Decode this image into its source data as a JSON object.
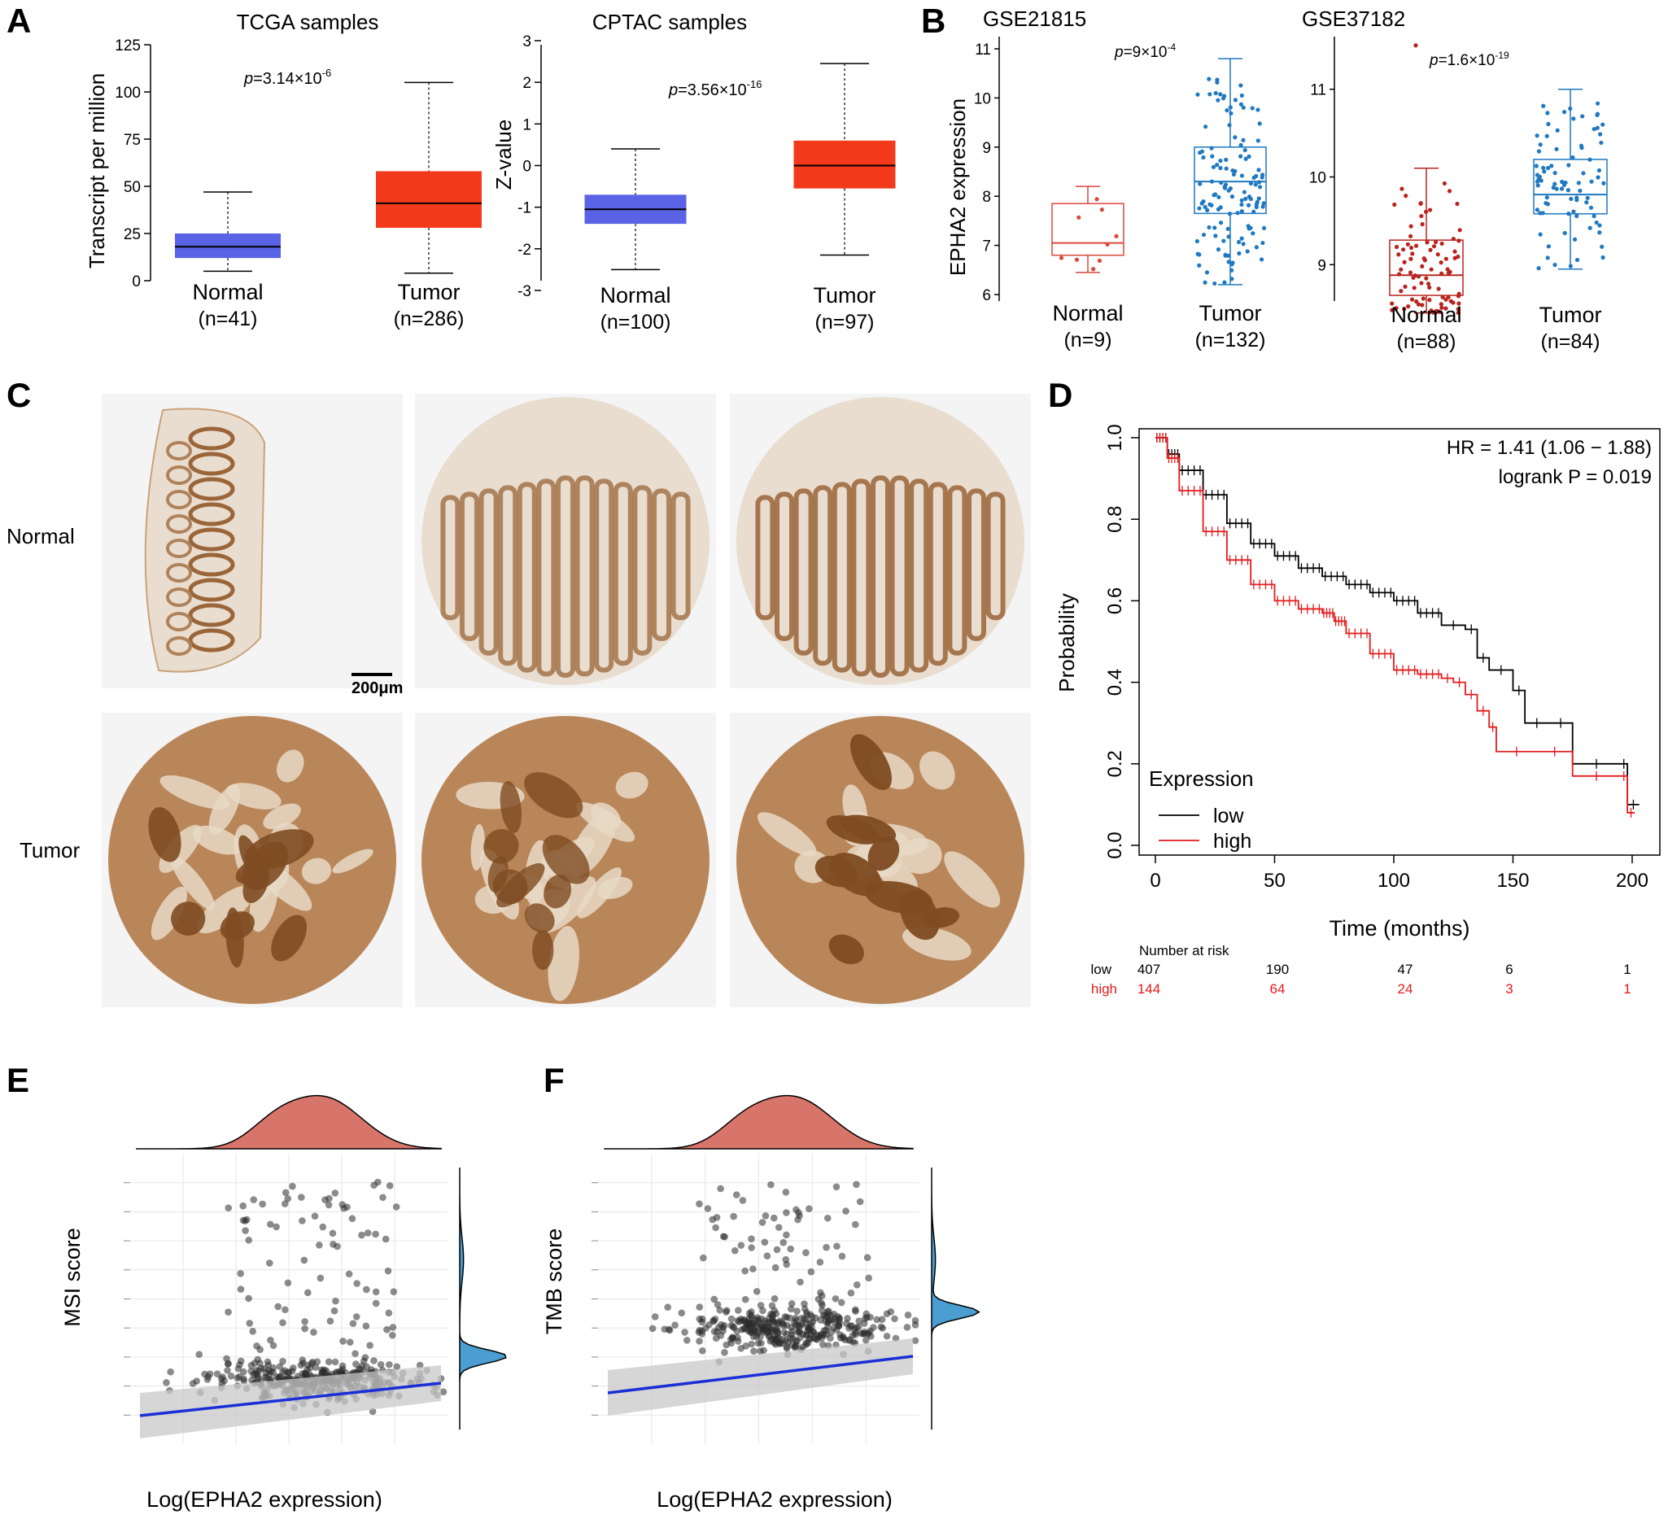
{
  "panels": {
    "A": {
      "letter": "A",
      "left": {
        "title": "TCGA samples",
        "ylabel": "Transcript per million",
        "p_prefix": "p",
        "p_text": "=3.14×10",
        "p_exp": "-6",
        "ylim": [
          0,
          125
        ],
        "yticks": [
          "0",
          "25",
          "50",
          "75",
          "100",
          "125"
        ],
        "groups": [
          {
            "name": "Normal",
            "n": "(n=41)",
            "min": 5,
            "q1": 12,
            "median": 18,
            "q3": 25,
            "max": 47,
            "color": "#5a63e6"
          },
          {
            "name": "Tumor",
            "n": "(n=286)",
            "min": 4,
            "q1": 28,
            "median": 41,
            "q3": 58,
            "max": 105,
            "color": "#f23a1a"
          }
        ]
      },
      "right": {
        "title": "CPTAC samples",
        "ylabel": "Z-value",
        "p_prefix": "p",
        "p_text": "=3.56×10",
        "p_exp": "-16",
        "ylim": [
          -3,
          3
        ],
        "yticks": [
          "-3",
          "-2",
          "-1",
          "0",
          "1",
          "2",
          "3"
        ],
        "groups": [
          {
            "name": "Normal",
            "n": "(n=100)",
            "min": -2.5,
            "q1": -1.4,
            "median": -1.05,
            "q3": -0.7,
            "max": 0.4,
            "color": "#5a63e6"
          },
          {
            "name": "Tumor",
            "n": "(n=97)",
            "min": -2.15,
            "q1": -0.55,
            "median": 0.0,
            "q3": 0.6,
            "max": 2.45,
            "color": "#f23a1a"
          }
        ]
      }
    },
    "B": {
      "letter": "B",
      "left": {
        "title": "GSE21815",
        "ylabel": "EPHA2 expression",
        "p_prefix": "p",
        "p_text": "=9×10",
        "p_exp": "-4",
        "ylim": [
          6,
          11
        ],
        "yticks": [
          "6",
          "7",
          "8",
          "9",
          "10",
          "11"
        ],
        "groups": [
          {
            "name": "Normal",
            "n": "(n=9)",
            "min": 6.45,
            "q1": 6.8,
            "median": 7.05,
            "q3": 7.85,
            "max": 8.2,
            "npoints": 9,
            "color": "#d9483b"
          },
          {
            "name": "Tumor",
            "n": "(n=132)",
            "min": 6.2,
            "q1": 7.65,
            "median": 8.3,
            "q3": 9.0,
            "max": 10.8,
            "npoints": 132,
            "color": "#1f78c1"
          }
        ]
      },
      "right": {
        "title": "GSE37182",
        "ylabel": "",
        "p_prefix": "p",
        "p_text": "=1.6×10",
        "p_exp": "-19",
        "ylim": [
          8.4,
          11.6
        ],
        "yticks": [
          "9",
          "10",
          "11"
        ],
        "groups": [
          {
            "name": "Normal",
            "n": "(n=88)",
            "min": 8.45,
            "q1": 8.65,
            "median": 8.88,
            "q3": 9.28,
            "max": 10.1,
            "npoints": 88,
            "color": "#b8241f"
          },
          {
            "name": "Tumor",
            "n": "(n=84)",
            "min": 8.95,
            "q1": 9.58,
            "median": 9.8,
            "q3": 10.2,
            "max": 11.0,
            "npoints": 84,
            "color": "#1f78c1"
          }
        ]
      }
    },
    "C": {
      "letter": "C",
      "row_labels": [
        "Normal",
        "Tumor"
      ],
      "scale_bar": "200μm"
    },
    "D": {
      "letter": "D",
      "hr_text": "HR = 1.41 (1.06 − 1.88)",
      "logrank_text": "logrank P = 0.019",
      "xlabel": "Time (months)",
      "ylabel": "Probability",
      "xlim": [
        0,
        205
      ],
      "ylim": [
        0,
        1
      ],
      "xticks": [
        "0",
        "50",
        "100",
        "150",
        "200"
      ],
      "yticks": [
        "0.0",
        "0.2",
        "0.4",
        "0.6",
        "0.8",
        "1.0"
      ],
      "legend_title": "Expression",
      "risk_title": "Number at risk",
      "series": [
        {
          "name": "low",
          "color": "#000000",
          "curve": [
            [
              0,
              1.0
            ],
            [
              5,
              0.96
            ],
            [
              10,
              0.92
            ],
            [
              20,
              0.86
            ],
            [
              30,
              0.79
            ],
            [
              40,
              0.74
            ],
            [
              50,
              0.71
            ],
            [
              60,
              0.68
            ],
            [
              70,
              0.66
            ],
            [
              80,
              0.64
            ],
            [
              90,
              0.62
            ],
            [
              100,
              0.6
            ],
            [
              110,
              0.57
            ],
            [
              120,
              0.54
            ],
            [
              130,
              0.53
            ],
            [
              135,
              0.46
            ],
            [
              140,
              0.43
            ],
            [
              150,
              0.38
            ],
            [
              155,
              0.3
            ],
            [
              165,
              0.3
            ],
            [
              175,
              0.2
            ],
            [
              195,
              0.2
            ],
            [
              198,
              0.1
            ],
            [
              203,
              0.1
            ]
          ],
          "risk": [
            "407",
            "190",
            "47",
            "6",
            "1"
          ]
        },
        {
          "name": "high",
          "color": "#e41a1c",
          "curve": [
            [
              0,
              1.0
            ],
            [
              5,
              0.95
            ],
            [
              10,
              0.87
            ],
            [
              20,
              0.77
            ],
            [
              30,
              0.7
            ],
            [
              40,
              0.64
            ],
            [
              50,
              0.6
            ],
            [
              60,
              0.58
            ],
            [
              70,
              0.57
            ],
            [
              75,
              0.55
            ],
            [
              80,
              0.52
            ],
            [
              90,
              0.47
            ],
            [
              100,
              0.43
            ],
            [
              110,
              0.42
            ],
            [
              120,
              0.41
            ],
            [
              125,
              0.4
            ],
            [
              130,
              0.37
            ],
            [
              135,
              0.33
            ],
            [
              140,
              0.29
            ],
            [
              143,
              0.23
            ],
            [
              160,
              0.23
            ],
            [
              175,
              0.17
            ],
            [
              195,
              0.17
            ],
            [
              198,
              0.08
            ],
            [
              201,
              0.08
            ]
          ],
          "risk": [
            "144",
            "64",
            "24",
            "3",
            "1"
          ]
        }
      ]
    },
    "E": {
      "letter": "E",
      "ylabel": "MSI score",
      "xlabel": "Log(EPHA2 expression)"
    },
    "F": {
      "letter": "F",
      "ylabel": "TMB score",
      "xlabel": "Log(EPHA2 expression)"
    }
  },
  "colors": {
    "density_top": "#d8756a",
    "density_side": "#4a9ed1",
    "fit_line": "#1a2fd6",
    "ci_band": "#c8c8c8",
    "ihc_brown": "#9a6538",
    "ihc_light": "#e9ddd0"
  }
}
